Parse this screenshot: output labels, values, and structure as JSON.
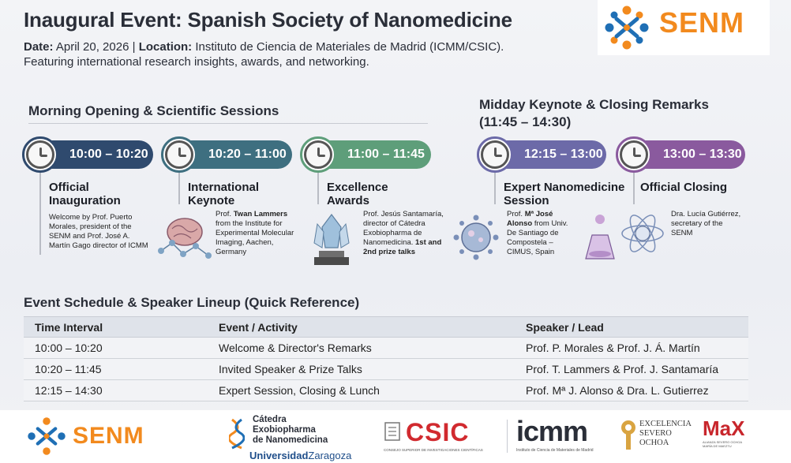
{
  "header": {
    "title": "Inaugural Event: Spanish Society of Nanomedicine",
    "date_label": "Date:",
    "date_value": "April 20, 2026",
    "sep": "|",
    "location_label": "Location:",
    "location_value": "Instituto de Ciencia de Materiales de Madrid (ICMM/CSIC).",
    "tagline": "Featuring international research insights, awards, and networking.",
    "logo_text": "SENM"
  },
  "morning": {
    "title": "Morning Opening & Scientific Sessions",
    "events": [
      {
        "time": "10:00 – 10:20",
        "color": "#2f4a6e",
        "title": "Official Inauguration",
        "desc": "Welcome by Prof. Puerto Morales, president of the SENM and Prof. José A. Martín Gago director of ICMM"
      },
      {
        "time": "10:20 – 11:00",
        "color": "#3e6f80",
        "title": "International Keynote",
        "desc_pre": "Prof. ",
        "desc_bold": "Twan Lammers",
        "desc_post": " from the Institute for Experimental Molecular Imaging, Aachen, Germany"
      },
      {
        "time": "11:00 – 11:45",
        "color": "#5e9e7a",
        "title": "Excellence Awards",
        "desc_pre": "Prof. Jesús Santamaría, director of Cátedra Exobiopharma de Nanomedicina. ",
        "desc_bold": "1st and 2nd prize talks"
      }
    ]
  },
  "midday": {
    "title_line1": "Midday Keynote & Closing Remarks",
    "title_line2": "(11:45 – 14:30)",
    "events": [
      {
        "time": "12:15 – 13:00",
        "color": "#6c6aa8",
        "title": "Expert Nanomedicine Session",
        "desc_pre": "Prof. ",
        "desc_bold": "Mª José Alonso",
        "desc_post": " from Univ. De Santiago de Compostela – CIMUS, Spain"
      },
      {
        "time": "13:00 – 13:30",
        "color": "#8a5a9e",
        "title": "Official Closing",
        "desc": "Dra. Lucía Gutiérrez, secretary of the SENM"
      }
    ]
  },
  "schedule": {
    "title": "Event Schedule & Speaker Lineup (Quick Reference)",
    "headers": [
      "Time Interval",
      "Event / Activity",
      "Speaker / Lead"
    ],
    "rows": [
      [
        "10:00 – 10:20",
        "Welcome & Director's Remarks",
        "Prof. P. Morales & Prof. J. Á. Martín"
      ],
      [
        "10:20 – 11:45",
        "Invited Speaker & Prize Talks",
        "Prof. T. Lammers & Prof. J. Santamaría"
      ],
      [
        "12:15 – 14:30",
        "Expert Session, Closing & Lunch",
        "Prof. Mª J. Alonso & Dra. L. Gutierrez"
      ]
    ]
  },
  "footer": {
    "senm": "SENM",
    "catedra_l1": "Cátedra",
    "catedra_l2": "Exobiopharma",
    "catedra_l3": "de Nanomedicina",
    "unizar_a": "Universidad",
    "unizar_b": "Zaragoza",
    "csic": "CSIC",
    "csic_sub": "CONSEJO SUPERIOR DE INVESTIGACIONES CIENTÍFICAS",
    "icmm": "icmm",
    "icmm_sub": "Instituto de Ciencia de Materiales de Madrid",
    "exc_l1": "EXCELENCIA",
    "exc_l2": "SEVERO",
    "exc_l3": "OCHOA",
    "max": "MaX",
    "max_sub": "ALIANZA SEVERO OCHOA MARÍA DE MAEZTU"
  },
  "colors": {
    "senm_orange": "#f28a1e",
    "senm_blue": "#1f6fb5",
    "csic_red": "#d12a2f",
    "icmm_dark": "#2a2e38"
  }
}
